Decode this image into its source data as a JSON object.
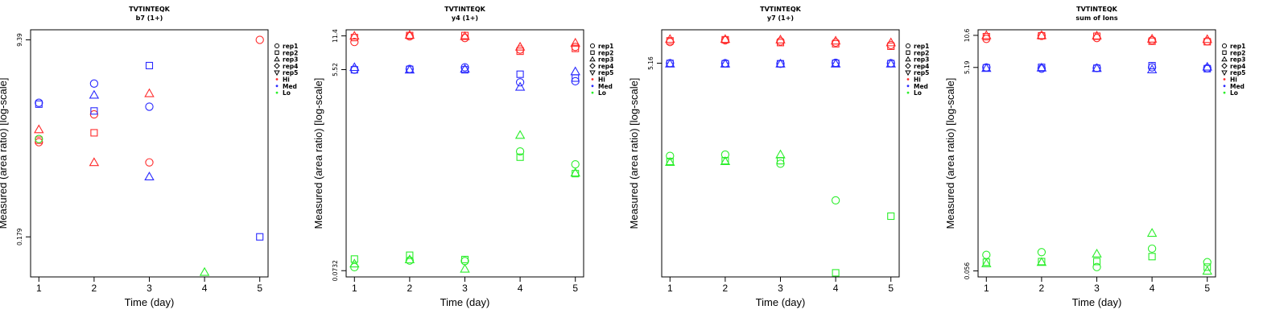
{
  "colors": {
    "Hi": "#ff2a2a",
    "Med": "#2a2aff",
    "Lo": "#2aee2a"
  },
  "legend": [
    {
      "label": "rep1",
      "kind": "shape",
      "shape": "circle"
    },
    {
      "label": "rep2",
      "kind": "shape",
      "shape": "square"
    },
    {
      "label": "rep3",
      "kind": "shape",
      "shape": "triangle-up"
    },
    {
      "label": "rep4",
      "kind": "shape",
      "shape": "diamond"
    },
    {
      "label": "rep5",
      "kind": "shape",
      "shape": "triangle-down"
    },
    {
      "label": "Hi",
      "kind": "color",
      "color": "Hi"
    },
    {
      "label": "Med",
      "kind": "color",
      "color": "Med"
    },
    {
      "label": "Lo",
      "kind": "color",
      "color": "Lo"
    }
  ],
  "chart_data": [
    {
      "type": "scatter",
      "title": "TVTINTEQK",
      "subtitle": "b7 (1+)",
      "xlabel": "Time (day)",
      "ylabel": "Measured (area ratio) [log-scale]",
      "x_ticks": [
        1,
        2,
        3,
        4,
        5
      ],
      "y_ticks": [
        0.179,
        9.39
      ],
      "y_scale": "log",
      "xlim": [
        0.85,
        5.15
      ],
      "ylim": [
        0.08,
        11.5
      ],
      "legend_position": "right",
      "grid": false,
      "series": [
        {
          "level": "Hi",
          "points": [
            [
              1,
              1.55,
              "triangle-up"
            ],
            [
              1,
              1.25,
              "square"
            ],
            [
              1,
              1.2,
              "circle"
            ],
            [
              2,
              2.1,
              "circle"
            ],
            [
              2,
              1.45,
              "square"
            ],
            [
              2,
              0.8,
              "triangle-up"
            ],
            [
              3,
              3.2,
              "triangle-up"
            ],
            [
              3,
              0.8,
              "circle"
            ],
            [
              5,
              9.39,
              "circle"
            ]
          ]
        },
        {
          "level": "Med",
          "points": [
            [
              1,
              2.65,
              "circle"
            ],
            [
              1,
              2.58,
              "square"
            ],
            [
              2,
              3.9,
              "circle"
            ],
            [
              2,
              3.1,
              "triangle-up"
            ],
            [
              2,
              2.25,
              "square"
            ],
            [
              3,
              5.6,
              "square"
            ],
            [
              3,
              2.45,
              "circle"
            ],
            [
              3,
              0.6,
              "triangle-up"
            ],
            [
              5,
              0.179,
              "square"
            ]
          ]
        },
        {
          "level": "Lo",
          "points": [
            [
              1,
              1.28,
              "circle"
            ],
            [
              4,
              0.088,
              "triangle-up"
            ]
          ]
        }
      ]
    },
    {
      "type": "scatter",
      "title": "TVTINTEQK",
      "subtitle": "y4 (1+)",
      "xlabel": "Time (day)",
      "ylabel": "Measured (area ratio) [log-scale]",
      "x_ticks": [
        1,
        2,
        3,
        4,
        5
      ],
      "y_ticks": [
        0.0732,
        5.52,
        11.4
      ],
      "y_scale": "log",
      "xlim": [
        0.85,
        5.15
      ],
      "ylim": [
        0.064,
        13.0
      ],
      "legend_position": "right",
      "grid": false,
      "series": [
        {
          "level": "Hi",
          "points": [
            [
              1,
              11.4,
              "triangle-up"
            ],
            [
              1,
              11.0,
              "square"
            ],
            [
              1,
              10.0,
              "circle"
            ],
            [
              2,
              11.6,
              "triangle-up"
            ],
            [
              2,
              11.3,
              "circle"
            ],
            [
              2,
              11.5,
              "square"
            ],
            [
              3,
              11.3,
              "triangle-up"
            ],
            [
              3,
              10.9,
              "circle"
            ],
            [
              3,
              11.5,
              "square"
            ],
            [
              4,
              9.0,
              "triangle-up"
            ],
            [
              4,
              8.5,
              "circle"
            ],
            [
              4,
              8.2,
              "square"
            ],
            [
              5,
              9.8,
              "triangle-up"
            ],
            [
              5,
              9.0,
              "circle"
            ],
            [
              5,
              8.7,
              "square"
            ]
          ]
        },
        {
          "level": "Med",
          "points": [
            [
              1,
              5.8,
              "triangle-up"
            ],
            [
              1,
              5.52,
              "circle"
            ],
            [
              1,
              5.5,
              "square"
            ],
            [
              2,
              5.6,
              "circle"
            ],
            [
              2,
              5.55,
              "square"
            ],
            [
              2,
              5.5,
              "triangle-up"
            ],
            [
              3,
              5.8,
              "circle"
            ],
            [
              3,
              5.6,
              "triangle-up"
            ],
            [
              3,
              5.5,
              "square"
            ],
            [
              4,
              5.0,
              "square"
            ],
            [
              4,
              4.2,
              "circle"
            ],
            [
              4,
              3.8,
              "triangle-up"
            ],
            [
              5,
              5.3,
              "triangle-up"
            ],
            [
              5,
              4.6,
              "square"
            ],
            [
              5,
              4.3,
              "circle"
            ]
          ]
        },
        {
          "level": "Lo",
          "points": [
            [
              1,
              0.094,
              "square"
            ],
            [
              1,
              0.085,
              "triangle-up"
            ],
            [
              1,
              0.079,
              "circle"
            ],
            [
              2,
              0.102,
              "square"
            ],
            [
              2,
              0.093,
              "triangle-up"
            ],
            [
              2,
              0.091,
              "circle"
            ],
            [
              3,
              0.093,
              "square"
            ],
            [
              3,
              0.09,
              "circle"
            ],
            [
              3,
              0.076,
              "triangle-up"
            ],
            [
              4,
              1.35,
              "triangle-up"
            ],
            [
              4,
              0.95,
              "circle"
            ],
            [
              4,
              0.84,
              "square"
            ],
            [
              5,
              0.72,
              "circle"
            ],
            [
              5,
              0.6,
              "triangle-up"
            ],
            [
              5,
              0.59,
              "square"
            ]
          ]
        }
      ]
    },
    {
      "type": "scatter",
      "title": "TVTINTEQK",
      "subtitle": "y7 (1+)",
      "xlabel": "Time (day)",
      "ylabel": "Measured (area ratio) [log-scale]",
      "x_ticks": [
        1,
        2,
        3,
        4,
        5
      ],
      "y_ticks": [
        5.16
      ],
      "y_scale": "log",
      "xlim": [
        0.85,
        5.15
      ],
      "ylim": [
        0.055,
        10.5
      ],
      "legend_position": "right",
      "grid": false,
      "series": [
        {
          "level": "Hi",
          "points": [
            [
              1,
              8.6,
              "triangle-up"
            ],
            [
              1,
              8.3,
              "square"
            ],
            [
              1,
              8.1,
              "circle"
            ],
            [
              2,
              8.6,
              "triangle-up"
            ],
            [
              2,
              8.4,
              "circle"
            ],
            [
              2,
              8.5,
              "square"
            ],
            [
              3,
              8.5,
              "triangle-up"
            ],
            [
              3,
              8.2,
              "circle"
            ],
            [
              3,
              8.0,
              "square"
            ],
            [
              4,
              8.3,
              "triangle-up"
            ],
            [
              4,
              8.0,
              "circle"
            ],
            [
              4,
              7.8,
              "square"
            ],
            [
              5,
              8.0,
              "triangle-up"
            ],
            [
              5,
              7.6,
              "circle"
            ],
            [
              5,
              7.4,
              "square"
            ]
          ]
        },
        {
          "level": "Med",
          "points": [
            [
              1,
              5.16,
              "circle"
            ],
            [
              1,
              5.14,
              "square"
            ],
            [
              1,
              5.1,
              "triangle-up"
            ],
            [
              2,
              5.16,
              "circle"
            ],
            [
              2,
              5.1,
              "square"
            ],
            [
              2,
              5.1,
              "triangle-up"
            ],
            [
              3,
              5.1,
              "circle"
            ],
            [
              3,
              5.1,
              "square"
            ],
            [
              3,
              5.1,
              "triangle-up"
            ],
            [
              4,
              5.2,
              "circle"
            ],
            [
              4,
              5.16,
              "square"
            ],
            [
              4,
              5.1,
              "triangle-up"
            ],
            [
              5,
              5.16,
              "circle"
            ],
            [
              5,
              5.12,
              "square"
            ],
            [
              5,
              5.1,
              "triangle-up"
            ]
          ]
        },
        {
          "level": "Lo",
          "points": [
            [
              1,
              0.72,
              "circle"
            ],
            [
              1,
              0.64,
              "square"
            ],
            [
              1,
              0.63,
              "triangle-up"
            ],
            [
              2,
              0.74,
              "circle"
            ],
            [
              2,
              0.65,
              "square"
            ],
            [
              2,
              0.64,
              "triangle-up"
            ],
            [
              3,
              0.74,
              "triangle-up"
            ],
            [
              3,
              0.65,
              "square"
            ],
            [
              3,
              0.61,
              "circle"
            ],
            [
              4,
              0.28,
              "circle"
            ],
            [
              4,
              0.06,
              "square"
            ],
            [
              5,
              0.2,
              "square"
            ]
          ]
        }
      ]
    },
    {
      "type": "scatter",
      "title": "TVTINTEQK",
      "subtitle": "sum of Ions",
      "xlabel": "Time (day)",
      "ylabel": "Measured (area ratio) [log-scale]",
      "x_ticks": [
        1,
        2,
        3,
        4,
        5
      ],
      "y_ticks": [
        0.056,
        5.19,
        10.6
      ],
      "y_scale": "log",
      "xlim": [
        0.85,
        5.15
      ],
      "ylim": [
        0.049,
        12.0
      ],
      "legend_position": "right",
      "grid": false,
      "series": [
        {
          "level": "Hi",
          "points": [
            [
              1,
              10.6,
              "triangle-up"
            ],
            [
              1,
              10.3,
              "square"
            ],
            [
              1,
              9.8,
              "circle"
            ],
            [
              2,
              10.6,
              "triangle-up"
            ],
            [
              2,
              10.5,
              "circle"
            ],
            [
              2,
              10.5,
              "square"
            ],
            [
              3,
              10.5,
              "triangle-up"
            ],
            [
              3,
              10.4,
              "square"
            ],
            [
              3,
              10.0,
              "circle"
            ],
            [
              4,
              9.8,
              "triangle-up"
            ],
            [
              4,
              9.5,
              "circle"
            ],
            [
              4,
              9.3,
              "square"
            ],
            [
              5,
              9.7,
              "triangle-up"
            ],
            [
              5,
              9.3,
              "circle"
            ],
            [
              5,
              9.2,
              "square"
            ]
          ]
        },
        {
          "level": "Med",
          "points": [
            [
              1,
              5.19,
              "circle"
            ],
            [
              1,
              5.15,
              "square"
            ],
            [
              1,
              5.1,
              "triangle-up"
            ],
            [
              2,
              5.2,
              "square"
            ],
            [
              2,
              5.15,
              "triangle-up"
            ],
            [
              2,
              5.05,
              "circle"
            ],
            [
              3,
              5.12,
              "circle"
            ],
            [
              3,
              5.1,
              "square"
            ],
            [
              3,
              5.1,
              "triangle-up"
            ],
            [
              4,
              5.4,
              "square"
            ],
            [
              4,
              5.2,
              "circle"
            ],
            [
              4,
              4.95,
              "triangle-up"
            ],
            [
              5,
              5.25,
              "triangle-up"
            ],
            [
              5,
              5.1,
              "circle"
            ],
            [
              5,
              5.05,
              "square"
            ]
          ]
        },
        {
          "level": "Lo",
          "points": [
            [
              1,
              0.08,
              "circle"
            ],
            [
              1,
              0.068,
              "square"
            ],
            [
              1,
              0.066,
              "triangle-up"
            ],
            [
              2,
              0.085,
              "circle"
            ],
            [
              2,
              0.069,
              "square"
            ],
            [
              2,
              0.068,
              "triangle-up"
            ],
            [
              3,
              0.082,
              "triangle-up"
            ],
            [
              3,
              0.069,
              "square"
            ],
            [
              3,
              0.061,
              "circle"
            ],
            [
              4,
              0.13,
              "triangle-up"
            ],
            [
              4,
              0.092,
              "circle"
            ],
            [
              4,
              0.077,
              "square"
            ],
            [
              5,
              0.068,
              "circle"
            ],
            [
              5,
              0.061,
              "square"
            ],
            [
              5,
              0.056,
              "triangle-up"
            ]
          ]
        }
      ]
    }
  ]
}
